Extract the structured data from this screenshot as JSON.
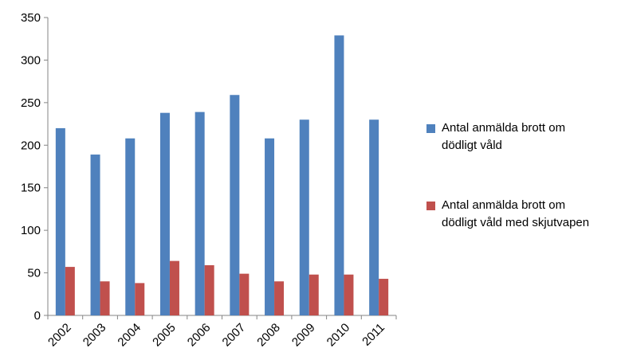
{
  "chart_data": {
    "type": "bar",
    "categories": [
      "2002",
      "2003",
      "2004",
      "2005",
      "2006",
      "2007",
      "2008",
      "2009",
      "2010",
      "2011"
    ],
    "series": [
      {
        "name": "Antal anmälda brott om dödligt våld",
        "color": "#4f81bd",
        "values": [
          220,
          189,
          208,
          238,
          239,
          259,
          208,
          230,
          329,
          230
        ]
      },
      {
        "name": "Antal anmälda brott om dödligt våld med skjutvapen",
        "color": "#c0504d",
        "values": [
          57,
          40,
          38,
          64,
          59,
          49,
          40,
          48,
          48,
          43
        ]
      }
    ],
    "ylim": [
      0,
      350
    ],
    "yticks": [
      0,
      50,
      100,
      150,
      200,
      250,
      300,
      350
    ],
    "grid": false,
    "legend": "right"
  }
}
